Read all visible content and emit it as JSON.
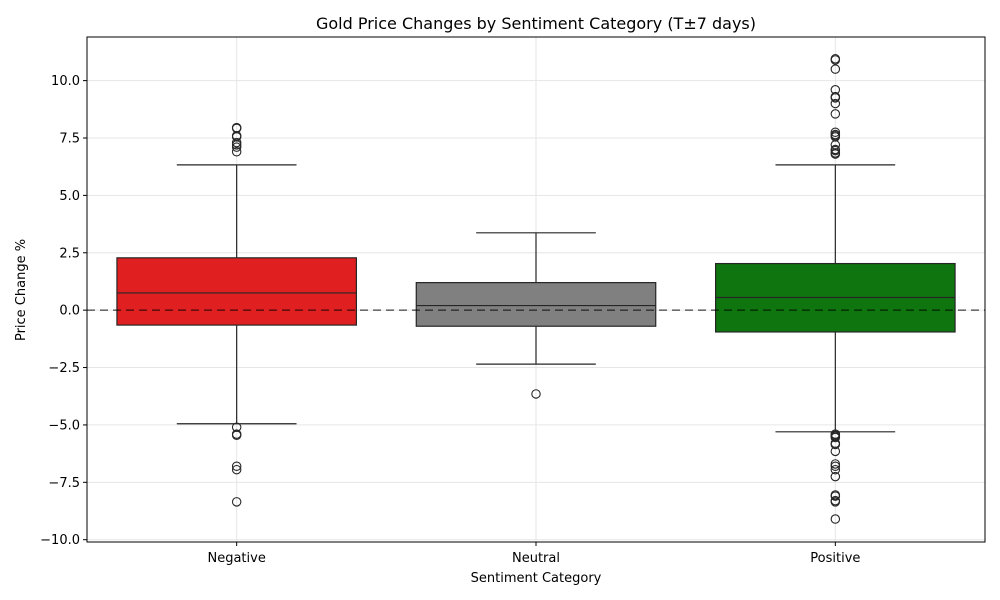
{
  "chart_data": {
    "type": "box",
    "title": "Gold Price Changes by Sentiment Category (T±7 days)",
    "xlabel": "Sentiment Category",
    "ylabel": "Price Change %",
    "ylim": [
      -10.1,
      11.9
    ],
    "yticks": [
      -10.0,
      -7.5,
      -5.0,
      -2.5,
      0.0,
      2.5,
      5.0,
      7.5,
      10.0
    ],
    "ytick_labels": [
      "−10.0",
      "−7.5",
      "−5.0",
      "−2.5",
      "0.0",
      "2.5",
      "5.0",
      "7.5",
      "10.0"
    ],
    "grid": true,
    "reference_line": 0,
    "categories": [
      "Negative",
      "Neutral",
      "Positive"
    ],
    "colors": [
      "#e02020",
      "#808080",
      "#0f760f"
    ],
    "boxes": [
      {
        "category": "Negative",
        "whisker_low": -4.95,
        "q1": -0.65,
        "median": 0.75,
        "q3": 2.28,
        "whisker_high": 6.33,
        "outliers": [
          7.95,
          7.92,
          7.6,
          7.55,
          7.3,
          7.2,
          7.1,
          6.9,
          -5.1,
          -5.4,
          -5.45,
          -6.8,
          -6.95,
          -8.35
        ]
      },
      {
        "category": "Neutral",
        "whisker_low": -2.35,
        "q1": -0.7,
        "median": 0.2,
        "q3": 1.2,
        "whisker_high": 3.37,
        "outliers": [
          -3.65
        ]
      },
      {
        "category": "Positive",
        "whisker_low": -5.3,
        "q1": -0.95,
        "median": 0.55,
        "q3": 2.03,
        "whisker_high": 6.33,
        "outliers": [
          10.95,
          10.9,
          10.5,
          9.6,
          9.3,
          9.25,
          9.0,
          8.55,
          7.75,
          7.65,
          7.6,
          7.55,
          7.2,
          7.0,
          6.95,
          6.85,
          6.8,
          -5.4,
          -5.45,
          -5.5,
          -5.55,
          -5.8,
          -5.85,
          -6.15,
          -6.7,
          -6.8,
          -6.95,
          -7.25,
          -8.05,
          -8.1,
          -8.3,
          -8.35,
          -9.1
        ]
      }
    ]
  }
}
